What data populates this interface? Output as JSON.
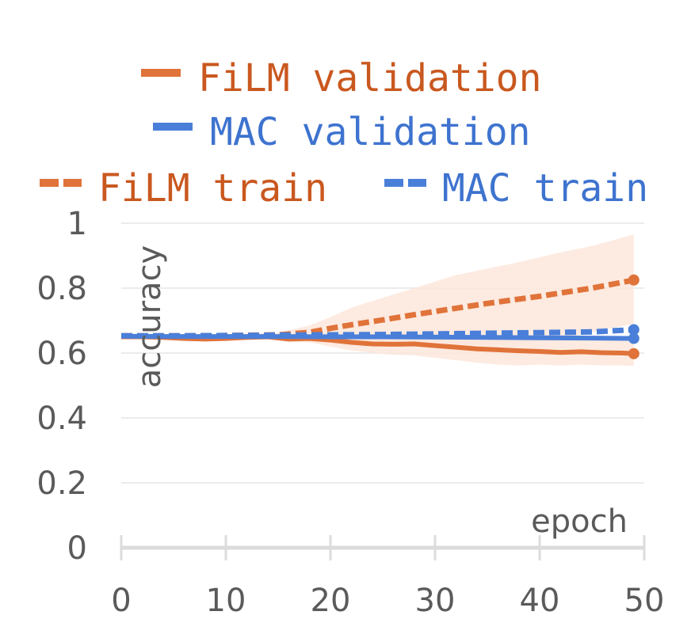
{
  "chart_data": {
    "type": "line",
    "xlabel": "epoch",
    "ylabel": "accuracy",
    "xlim": [
      0,
      50
    ],
    "ylim": [
      0,
      1
    ],
    "xticks": [
      "0",
      "10",
      "20",
      "30",
      "40",
      "50"
    ],
    "yticks": [
      "0",
      "0.2",
      "0.4",
      "0.6",
      "0.8",
      "1"
    ],
    "grid": true,
    "legend_position": "top",
    "colors": {
      "film": "#e0733a",
      "mac": "#4a7fd9",
      "band": "#fde6da",
      "grid": "#e6e6e6"
    },
    "series": [
      {
        "name": "FiLM validation",
        "style": "solid",
        "color": "#e0733a",
        "x": [
          0,
          2,
          4,
          6,
          8,
          10,
          12,
          14,
          16,
          18,
          20,
          22,
          24,
          26,
          28,
          30,
          32,
          34,
          36,
          38,
          40,
          42,
          44,
          46,
          48,
          49
        ],
        "y": [
          0.65,
          0.65,
          0.648,
          0.645,
          0.643,
          0.645,
          0.648,
          0.65,
          0.643,
          0.645,
          0.64,
          0.633,
          0.628,
          0.627,
          0.628,
          0.623,
          0.618,
          0.613,
          0.61,
          0.607,
          0.605,
          0.602,
          0.604,
          0.601,
          0.6,
          0.598
        ],
        "band_upper": [
          0.655,
          0.655,
          0.655,
          0.655,
          0.655,
          0.655,
          0.655,
          0.655,
          0.655,
          0.655,
          0.66,
          0.66,
          0.66,
          0.66,
          0.658,
          0.655,
          0.653,
          0.65,
          0.648,
          0.645,
          0.643,
          0.64,
          0.64,
          0.64,
          0.638,
          0.636
        ],
        "band_lower": [
          0.645,
          0.645,
          0.64,
          0.638,
          0.636,
          0.638,
          0.64,
          0.642,
          0.635,
          0.633,
          0.62,
          0.608,
          0.6,
          0.595,
          0.593,
          0.585,
          0.578,
          0.57,
          0.565,
          0.562,
          0.565,
          0.562,
          0.565,
          0.562,
          0.562,
          0.56
        ]
      },
      {
        "name": "MAC validation",
        "style": "solid",
        "color": "#4a7fd9",
        "x": [
          0,
          5,
          10,
          15,
          20,
          25,
          30,
          35,
          40,
          45,
          49
        ],
        "y": [
          0.652,
          0.651,
          0.651,
          0.651,
          0.65,
          0.65,
          0.649,
          0.648,
          0.647,
          0.646,
          0.645
        ]
      },
      {
        "name": "FiLM train",
        "style": "dashed",
        "color": "#e0733a",
        "x": [
          0,
          5,
          10,
          15,
          18,
          20,
          22,
          25,
          28,
          30,
          32,
          35,
          38,
          40,
          42,
          45,
          49
        ],
        "y": [
          0.653,
          0.653,
          0.654,
          0.656,
          0.664,
          0.676,
          0.687,
          0.702,
          0.718,
          0.728,
          0.738,
          0.753,
          0.766,
          0.775,
          0.785,
          0.8,
          0.825
        ],
        "band_upper": [
          0.656,
          0.656,
          0.658,
          0.662,
          0.685,
          0.71,
          0.74,
          0.77,
          0.8,
          0.82,
          0.84,
          0.86,
          0.88,
          0.895,
          0.91,
          0.93,
          0.965
        ],
        "band_lower": [
          0.65,
          0.65,
          0.65,
          0.65,
          0.648,
          0.645,
          0.64,
          0.635,
          0.63,
          0.628,
          0.625,
          0.625,
          0.63,
          0.635,
          0.64,
          0.665,
          0.69
        ]
      },
      {
        "name": "MAC train",
        "style": "dashed",
        "color": "#4a7fd9",
        "x": [
          0,
          5,
          10,
          15,
          20,
          25,
          30,
          35,
          40,
          45,
          49
        ],
        "y": [
          0.653,
          0.653,
          0.654,
          0.655,
          0.656,
          0.657,
          0.659,
          0.661,
          0.663,
          0.665,
          0.672
        ]
      }
    ]
  }
}
